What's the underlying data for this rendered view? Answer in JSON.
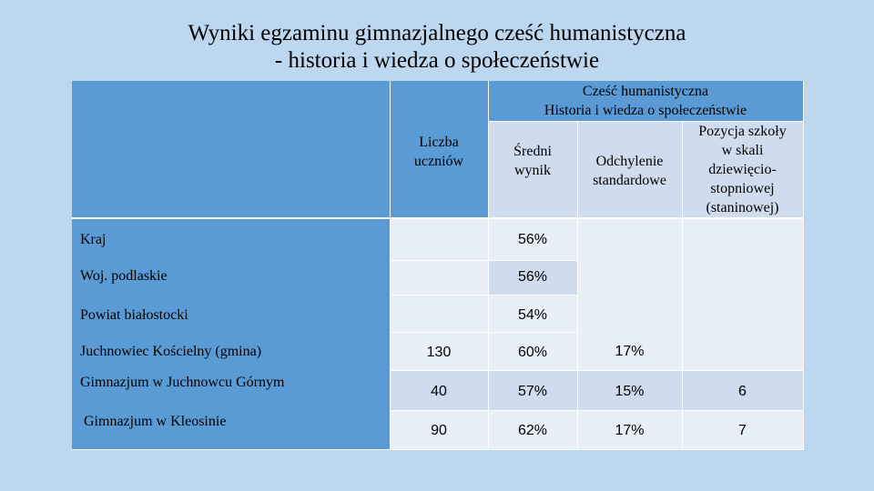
{
  "title": {
    "line1": "Wyniki egzaminu gimnazjalnego cześć humanistyczna",
    "line2": "- historia i wiedza o społeczeństwie"
  },
  "table": {
    "group_header": {
      "line1": "Cześć humanistyczna",
      "line2": "Historia i wiedza o społeczeństwie"
    },
    "columns": {
      "count": [
        "Liczba",
        "uczniów"
      ],
      "avg": [
        "Średni",
        "wynik"
      ],
      "std": [
        "Odchylenie",
        "standardowe"
      ],
      "pos": [
        "Pozycja szkoły",
        "w skali",
        "dziewięcio-",
        "stopniowej",
        "(staninowej)"
      ]
    },
    "rows": [
      {
        "name": "Kraj",
        "count": "",
        "avg": "56%",
        "std": "",
        "pos": ""
      },
      {
        "name": "Woj. podlaskie",
        "count": "",
        "avg": "56%",
        "std": "",
        "pos": ""
      },
      {
        "name": "Powiat białostocki",
        "count": "",
        "avg": "54%",
        "std": "",
        "pos": ""
      },
      {
        "name": "Juchnowiec Kościelny (gmina)",
        "count": "130",
        "avg": "60%",
        "std": "17%",
        "pos": ""
      },
      {
        "name": "Gimnazjum w Juchnowcu Górnym",
        "count": "40",
        "avg": "57%",
        "std": "15%",
        "pos": "6"
      },
      {
        "name": "Gimnazjum w Kleosinie",
        "count": "90",
        "avg": "62%",
        "std": "17%",
        "pos": "7"
      }
    ]
  }
}
